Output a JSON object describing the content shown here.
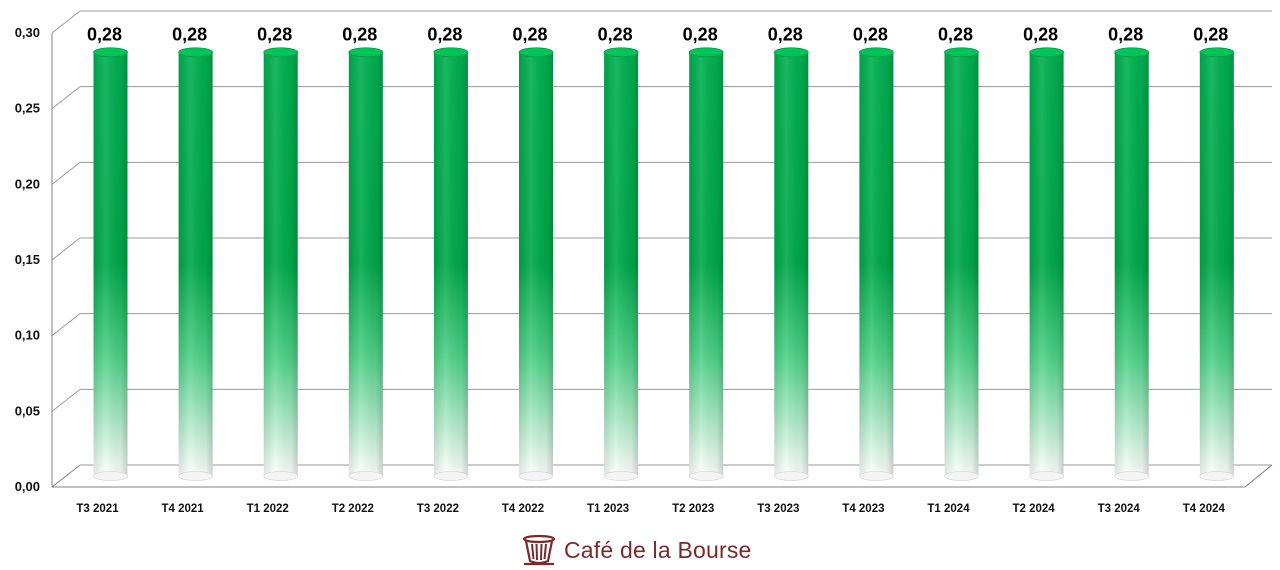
{
  "chart_data": {
    "type": "bar",
    "categories": [
      "T3 2021",
      "T4 2021",
      "T1 2022",
      "T2 2022",
      "T3 2022",
      "T4 2022",
      "T1 2023",
      "T2 2023",
      "T3 2023",
      "T4 2023",
      "T1 2024",
      "T2 2024",
      "T3 2024",
      "T4 2024"
    ],
    "values": [
      0.28,
      0.28,
      0.28,
      0.28,
      0.28,
      0.28,
      0.28,
      0.28,
      0.28,
      0.28,
      0.28,
      0.28,
      0.28,
      0.28
    ],
    "value_labels": [
      "0,28",
      "0,28",
      "0,28",
      "0,28",
      "0,28",
      "0,28",
      "0,28",
      "0,28",
      "0,28",
      "0,28",
      "0,28",
      "0,28",
      "0,28",
      "0,28"
    ],
    "ylim": [
      0,
      0.3
    ],
    "yticks": [
      0,
      0.05,
      0.1,
      0.15,
      0.2,
      0.25,
      0.3
    ],
    "ytick_labels": [
      "0,00",
      "0,05",
      "0,10",
      "0,15",
      "0,20",
      "0,25",
      "0,30"
    ],
    "grid": true,
    "title": "",
    "xlabel": "",
    "ylabel": "",
    "bar_color": "#00b050",
    "style": "3d-cylinder"
  },
  "logo": {
    "text": "Café de la Bourse",
    "icon": "coffee-cup-icon",
    "color": "#7a2a2a"
  }
}
